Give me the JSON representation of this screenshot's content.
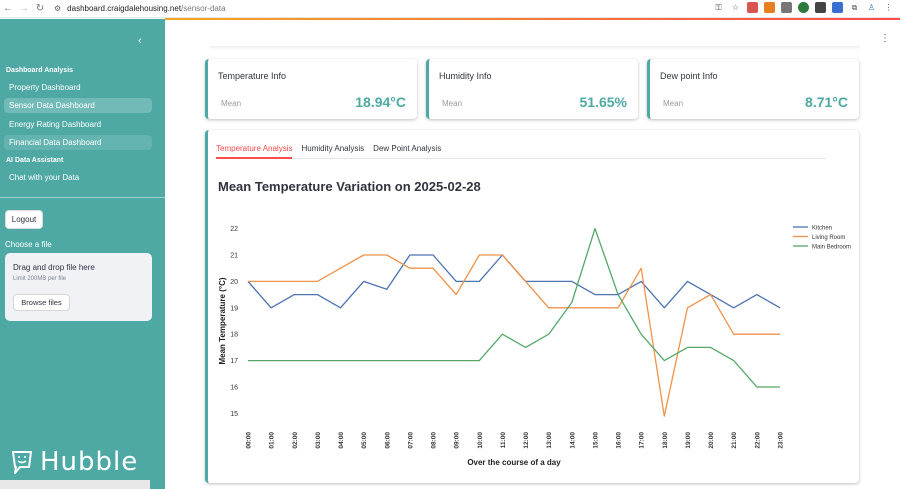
{
  "browser": {
    "url_host": "dashboard.craigdalehousing.net",
    "url_path": "/sensor-data"
  },
  "sidebar": {
    "sections": [
      {
        "title": "Dashboard Analysis",
        "items": [
          {
            "label": "Property Dashboard",
            "active": false
          },
          {
            "label": "Sensor Data Dashboard",
            "active": true
          },
          {
            "label": "Energy Rating Dashboard",
            "active": false
          },
          {
            "label": "Financial Data Dashboard",
            "active": false
          }
        ]
      },
      {
        "title": "AI Data Assistant",
        "items": [
          {
            "label": "Chat with your Data",
            "active": false
          }
        ]
      }
    ],
    "logout_label": "Logout",
    "choose_file_label": "Choose a file",
    "uploader": {
      "title": "Drag and drop file here",
      "limit": "Limit 200MB per file",
      "browse_label": "Browse files"
    },
    "logo_text": "Hubble"
  },
  "cards": [
    {
      "title": "Temperature Info",
      "label": "Mean",
      "value": "18.94°C"
    },
    {
      "title": "Humidity Info",
      "label": "Mean",
      "value": "51.65%"
    },
    {
      "title": "Dew point Info",
      "label": "Mean",
      "value": "8.71°C"
    }
  ],
  "tabs": [
    {
      "label": "Temperature Analysis",
      "active": true
    },
    {
      "label": "Humidity Analysis",
      "active": false
    },
    {
      "label": "Dew Point Analysis",
      "active": false
    }
  ],
  "colors": {
    "accent": "#4ea9a5",
    "active_tab": "#ff4b4b"
  },
  "chart_data": {
    "type": "line",
    "title": "Mean Temperature Variation on 2025-02-28",
    "xlabel": "Over the course of a day",
    "ylabel": "Mean Temperature (°C)",
    "ylim": [
      14.6,
      22.4
    ],
    "yticks": [
      15,
      16,
      17,
      18,
      19,
      20,
      21,
      22
    ],
    "grid": false,
    "legend_position": "top-right",
    "x": [
      "00:00",
      "01:00",
      "02:00",
      "03:00",
      "04:00",
      "05:00",
      "06:00",
      "07:00",
      "08:00",
      "09:00",
      "10:00",
      "11:00",
      "12:00",
      "13:00",
      "14:00",
      "15:00",
      "16:00",
      "17:00",
      "18:00",
      "19:00",
      "20:00",
      "21:00",
      "22:00",
      "23:00"
    ],
    "series": [
      {
        "name": "Kitchen",
        "color": "#4c72b0",
        "values": [
          20,
          19,
          19.5,
          19.5,
          19,
          20,
          19.7,
          21,
          21,
          20,
          20,
          21,
          20,
          20,
          20,
          19.5,
          19.5,
          20,
          19,
          20,
          19.5,
          19,
          19.5,
          19
        ]
      },
      {
        "name": "Living Room",
        "color": "#f0924a",
        "values": [
          20,
          20,
          20,
          20,
          20.5,
          21,
          21,
          20.5,
          20.5,
          19.5,
          21,
          21,
          20,
          19,
          19,
          19,
          19,
          20.5,
          14.9,
          19,
          19.5,
          18,
          18,
          18
        ]
      },
      {
        "name": "Main Bedroom",
        "color": "#55a868",
        "values": [
          17,
          17,
          17,
          17,
          17,
          17,
          17,
          17,
          17,
          17,
          17,
          18,
          17.5,
          18,
          19.2,
          22,
          19.5,
          18,
          17,
          17.5,
          17.5,
          17,
          16,
          16
        ]
      }
    ]
  }
}
